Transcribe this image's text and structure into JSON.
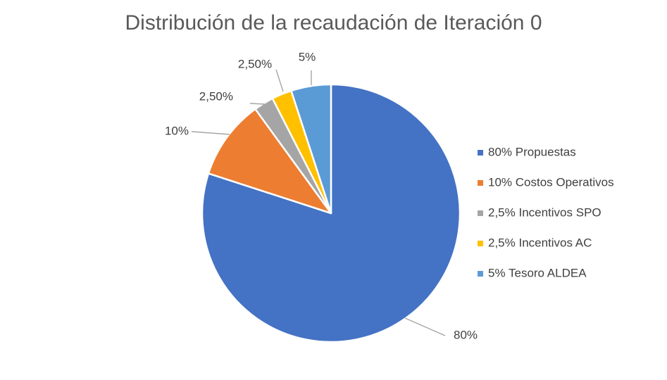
{
  "chart_data": {
    "type": "pie",
    "title": "Distribución de la recaudación de Iteración 0",
    "slices": [
      {
        "legend": "80% Propuestas",
        "value": 80,
        "label": "80%",
        "color": "#4472C4"
      },
      {
        "legend": "10% Costos Operativos",
        "value": 10,
        "label": "10%",
        "color": "#ED7D31"
      },
      {
        "legend": "2,5% Incentivos SPO",
        "value": 2.5,
        "label": "2,50%",
        "color": "#A5A5A5"
      },
      {
        "legend": "2,5% Incentivos AC",
        "value": 2.5,
        "label": "2,50%",
        "color": "#FFC000"
      },
      {
        "legend": "5% Tesoro ALDEA",
        "value": 5,
        "label": "5%",
        "color": "#5B9BD5"
      }
    ],
    "legend_position": "right"
  }
}
